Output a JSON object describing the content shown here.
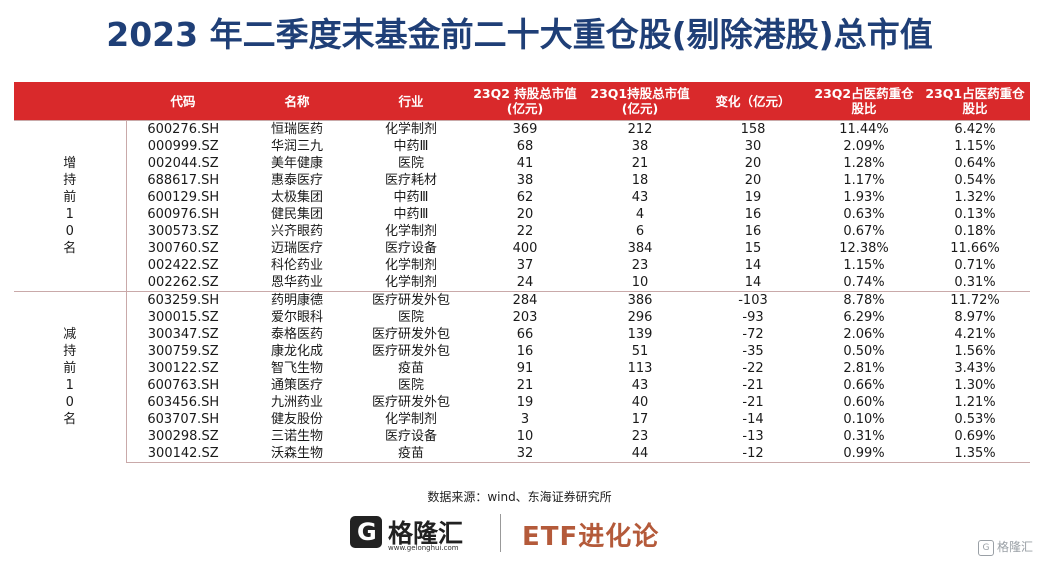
{
  "title": "2023 年二季度末基金前二十大重仓股(剔除港股)总市值",
  "table": {
    "headers": [
      "代码",
      "名称",
      "行业",
      "23Q2 持股总市值(亿元)",
      "23Q1持股总市值(亿元)",
      "变化（亿元）",
      "23Q2占医药重仓股比",
      "23Q1占医药重仓股比"
    ],
    "groups": [
      {
        "label": "增持前10名",
        "rows": [
          [
            "600276.SH",
            "恒瑞医药",
            "化学制剂",
            "369",
            "212",
            "158",
            "11.44%",
            "6.42%"
          ],
          [
            "000999.SZ",
            "华润三九",
            "中药Ⅲ",
            "68",
            "38",
            "30",
            "2.09%",
            "1.15%"
          ],
          [
            "002044.SZ",
            "美年健康",
            "医院",
            "41",
            "21",
            "20",
            "1.28%",
            "0.64%"
          ],
          [
            "688617.SH",
            "惠泰医疗",
            "医疗耗材",
            "38",
            "18",
            "20",
            "1.17%",
            "0.54%"
          ],
          [
            "600129.SH",
            "太极集团",
            "中药Ⅲ",
            "62",
            "43",
            "19",
            "1.93%",
            "1.32%"
          ],
          [
            "600976.SH",
            "健民集团",
            "中药Ⅲ",
            "20",
            "4",
            "16",
            "0.63%",
            "0.13%"
          ],
          [
            "300573.SZ",
            "兴齐眼药",
            "化学制剂",
            "22",
            "6",
            "16",
            "0.67%",
            "0.18%"
          ],
          [
            "300760.SZ",
            "迈瑞医疗",
            "医疗设备",
            "400",
            "384",
            "15",
            "12.38%",
            "11.66%"
          ],
          [
            "002422.SZ",
            "科伦药业",
            "化学制剂",
            "37",
            "23",
            "14",
            "1.15%",
            "0.71%"
          ],
          [
            "002262.SZ",
            "恩华药业",
            "化学制剂",
            "24",
            "10",
            "14",
            "0.74%",
            "0.31%"
          ]
        ]
      },
      {
        "label": "减持前10名",
        "rows": [
          [
            "603259.SH",
            "药明康德",
            "医疗研发外包",
            "284",
            "386",
            "-103",
            "8.78%",
            "11.72%"
          ],
          [
            "300015.SZ",
            "爱尔眼科",
            "医院",
            "203",
            "296",
            "-93",
            "6.29%",
            "8.97%"
          ],
          [
            "300347.SZ",
            "泰格医药",
            "医疗研发外包",
            "66",
            "139",
            "-72",
            "2.06%",
            "4.21%"
          ],
          [
            "300759.SZ",
            "康龙化成",
            "医疗研发外包",
            "16",
            "51",
            "-35",
            "0.50%",
            "1.56%"
          ],
          [
            "300122.SZ",
            "智飞生物",
            "疫苗",
            "91",
            "113",
            "-22",
            "2.81%",
            "3.43%"
          ],
          [
            "600763.SH",
            "通策医疗",
            "医院",
            "21",
            "43",
            "-21",
            "0.66%",
            "1.30%"
          ],
          [
            "603456.SH",
            "九洲药业",
            "医疗研发外包",
            "19",
            "40",
            "-21",
            "0.60%",
            "1.21%"
          ],
          [
            "603707.SH",
            "健友股份",
            "化学制剂",
            "3",
            "17",
            "-14",
            "0.10%",
            "0.53%"
          ],
          [
            "300298.SZ",
            "三诺生物",
            "医疗设备",
            "10",
            "23",
            "-13",
            "0.31%",
            "0.69%"
          ],
          [
            "300142.SZ",
            "沃森生物",
            "疫苗",
            "32",
            "44",
            "-12",
            "0.99%",
            "1.35%"
          ]
        ]
      }
    ]
  },
  "source": "数据来源：wind、东海证券研究所",
  "logos": {
    "gelonghui_mark": "G",
    "gelonghui_name": "格隆汇",
    "gelonghui_url": "www.gelonghui.com",
    "etf_name": "ETF进化论",
    "watermark": "格隆汇"
  },
  "colors": {
    "header_bg": "#d9292b",
    "title": "#1f3f77",
    "etf_brand": "#b45a3a"
  }
}
